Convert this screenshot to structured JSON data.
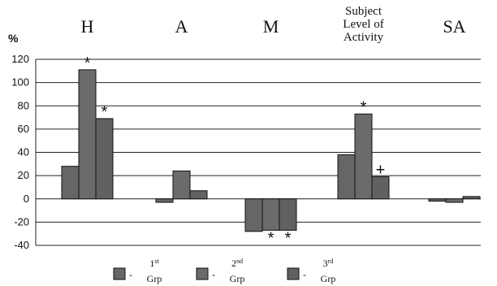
{
  "chart_data": {
    "type": "bar",
    "ylabel": "%",
    "ylim": [
      -40,
      120
    ],
    "yticks": [
      -40,
      -20,
      0,
      20,
      40,
      60,
      80,
      100,
      120
    ],
    "grid": true,
    "legend_position": "bottom",
    "categories": [
      {
        "lines": [
          "H"
        ]
      },
      {
        "lines": [
          "A"
        ]
      },
      {
        "lines": [
          "M"
        ]
      },
      {
        "lines": [
          "Subject",
          "Level of",
          "Activity"
        ]
      },
      {
        "lines": [
          "SA"
        ]
      }
    ],
    "series": [
      {
        "ordinal": "1",
        "suffix": "st",
        "grp": "Grp",
        "color": "#666666",
        "values": [
          28,
          -3,
          -28,
          38,
          -2
        ]
      },
      {
        "ordinal": "2",
        "suffix": "nd",
        "grp": "Grp",
        "color": "#6b6b6b",
        "values": [
          111,
          24,
          -27,
          73,
          -3
        ]
      },
      {
        "ordinal": "3",
        "suffix": "rd",
        "grp": "Grp",
        "color": "#616161",
        "values": [
          69,
          7,
          -27,
          19,
          2
        ]
      }
    ],
    "annotations": [
      {
        "category": 0,
        "series": 1,
        "symbol": "*",
        "placement": "above"
      },
      {
        "category": 0,
        "series": 2,
        "symbol": "*",
        "placement": "above"
      },
      {
        "category": 2,
        "series": 1,
        "symbol": "*",
        "placement": "below"
      },
      {
        "category": 2,
        "series": 2,
        "symbol": "*",
        "placement": "below"
      },
      {
        "category": 3,
        "series": 1,
        "symbol": "*",
        "placement": "above"
      },
      {
        "category": 3,
        "series": 2,
        "symbol": "+",
        "placement": "above"
      }
    ]
  }
}
